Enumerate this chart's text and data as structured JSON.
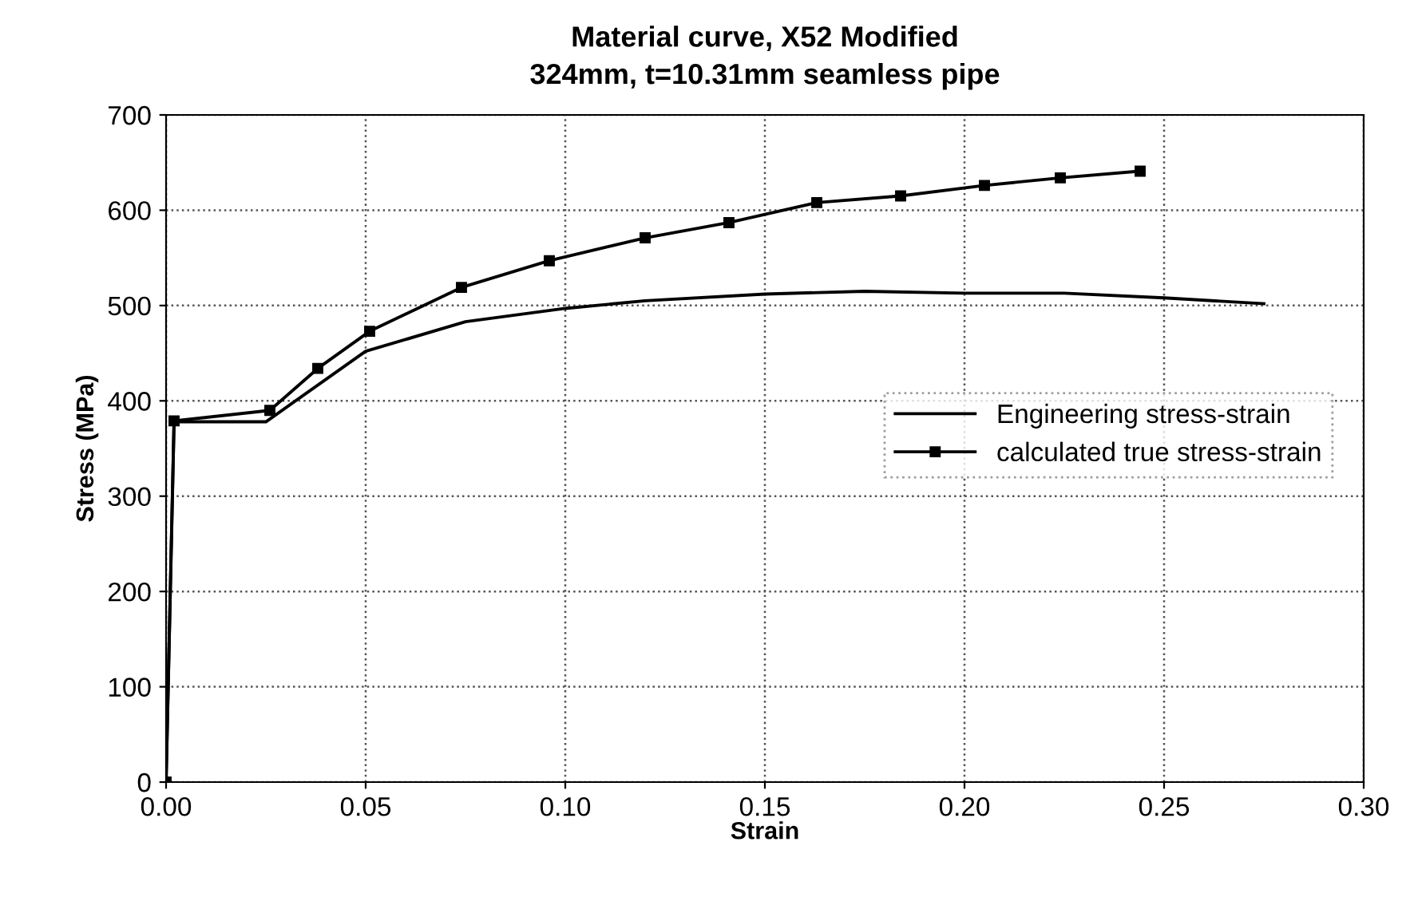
{
  "chart_data": {
    "type": "line",
    "title": "Material curve, X52 Modified\n324mm, t=10.31mm seamless pipe",
    "xlabel": "Strain",
    "ylabel": "Stress (MPa)",
    "xlim": [
      0,
      0.3
    ],
    "xticks": [
      {
        "value": 0,
        "label": "0.00"
      },
      {
        "value": 0.05,
        "label": "0.05"
      },
      {
        "value": 0.1,
        "label": "0.10"
      },
      {
        "value": 0.15,
        "label": "0.15"
      },
      {
        "value": 0.2,
        "label": "0.20"
      },
      {
        "value": 0.25,
        "label": "0.25"
      },
      {
        "value": 0.3,
        "label": "0.30"
      }
    ],
    "ylim": [
      0,
      700
    ],
    "yticks": [
      0,
      100,
      200,
      300,
      400,
      500,
      600,
      700
    ],
    "grid": true,
    "legend": "right",
    "line_style": "solid",
    "series": [
      {
        "name": "Engineering stress-strain",
        "color": "#000000",
        "marker": "none",
        "x": [
          0,
          0.002,
          0.025,
          0.05,
          0.075,
          0.1,
          0.12,
          0.15,
          0.175,
          0.2,
          0.225,
          0.25,
          0.275
        ],
        "values": [
          0,
          378,
          378,
          452,
          483,
          497,
          505,
          512,
          515,
          513,
          513,
          508,
          502
        ]
      },
      {
        "name": "calculated true stress-strain",
        "color": "#000000",
        "marker": "square",
        "x": [
          0,
          0.002,
          0.026,
          0.038,
          0.051,
          0.074,
          0.096,
          0.12,
          0.141,
          0.163,
          0.184,
          0.205,
          0.224,
          0.244
        ],
        "values": [
          0,
          379,
          390,
          434,
          473,
          519,
          547,
          571,
          587,
          608,
          615,
          626,
          634,
          641
        ]
      }
    ]
  }
}
